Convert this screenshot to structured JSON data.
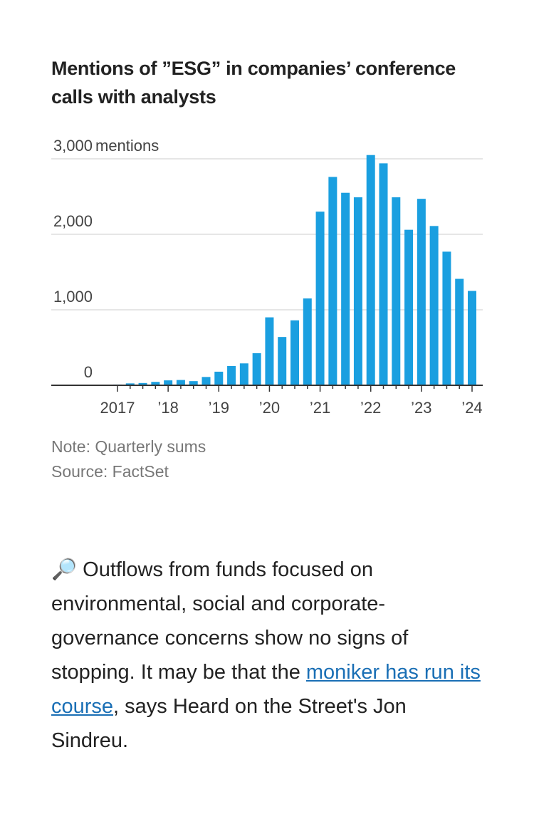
{
  "chart_data": {
    "type": "bar",
    "title": "Mentions of ”ESG” in companies’ conference calls with analysts",
    "y_unit": "mentions",
    "categories": [
      "2017",
      null,
      null,
      null,
      "’18",
      null,
      null,
      null,
      "’19",
      null,
      null,
      null,
      "’20",
      null,
      null,
      null,
      "’21",
      null,
      null,
      null,
      "’22",
      null,
      null,
      null,
      "’23",
      null,
      null,
      null,
      "’24"
    ],
    "values": [
      10,
      25,
      30,
      45,
      65,
      70,
      55,
      110,
      180,
      255,
      290,
      425,
      900,
      640,
      860,
      1150,
      2300,
      2760,
      2550,
      2490,
      3050,
      2940,
      2490,
      2060,
      2470,
      2110,
      1770,
      1410,
      1250
    ],
    "color": "#1a9fe0",
    "ylim": [
      0,
      3000
    ],
    "yticks": [
      0,
      {
        "value": 1000,
        "label": "1,000"
      },
      {
        "value": 2000,
        "label": "2,000"
      },
      {
        "value": 3000,
        "label": "3,000"
      }
    ],
    "grid": true,
    "note": "Note: Quarterly sums",
    "source": "Source: FactSet"
  },
  "article": {
    "before_link": "🔎 Outflows from funds focused on environmental, social and corporate-governance concerns show no signs of stopping. It may be that the ",
    "link": "moniker has run its course",
    "after_link": ", says Heard on the Street's Jon Sindreu."
  }
}
